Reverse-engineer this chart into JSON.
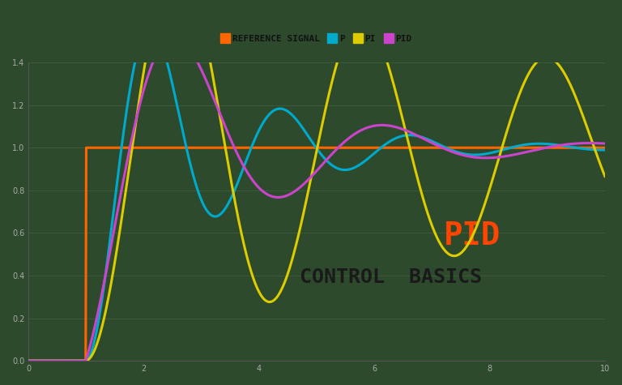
{
  "background_color": "#2d4a2d",
  "grid_color": "#3a5a3a",
  "text_color": "#1a1a1a",
  "title_pid": "PID",
  "title_pid_color": "#ff4500",
  "title_basics": "CONTROL  BASICS",
  "title_basics_color": "#1a1a1a",
  "ylim": [
    0.0,
    1.4
  ],
  "xlim": [
    0.0,
    10.0
  ],
  "yticks": [
    0.0,
    0.2,
    0.4,
    0.6,
    0.8,
    1.0,
    1.2,
    1.4
  ],
  "legend_labels": [
    "REFERENCE SIGNAL",
    "P",
    "PI",
    "PID"
  ],
  "legend_colors": [
    "#ff6600",
    "#00aacc",
    "#ddcc00",
    "#cc44cc"
  ],
  "ref_color": "#ff6600",
  "p_color": "#00aacc",
  "pi_color": "#ddcc00",
  "pid_color": "#cc44cc",
  "linewidth": 2.2
}
